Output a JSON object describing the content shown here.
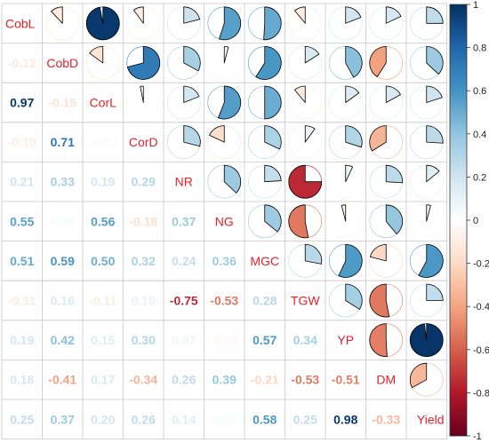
{
  "chart_data": {
    "type": "correlation-matrix",
    "variables": [
      "CobL",
      "CobD",
      "CorL",
      "CorD",
      "NR",
      "NG",
      "MGC",
      "TGW",
      "YP",
      "DM",
      "Yield"
    ],
    "correlations": [
      [
        1,
        -0.12,
        0.97,
        -0.1,
        0.21,
        0.55,
        0.51,
        -0.11,
        0.19,
        0.18,
        0.25
      ],
      [
        -0.12,
        1,
        -0.15,
        0.71,
        0.33,
        0.04,
        0.59,
        0.16,
        0.42,
        -0.41,
        0.37
      ],
      [
        0.97,
        -0.15,
        1,
        -0.03,
        0.19,
        0.56,
        0.5,
        -0.11,
        0.15,
        0.17,
        0.2
      ],
      [
        -0.1,
        0.71,
        -0.03,
        1,
        0.29,
        -0.18,
        0.32,
        0.1,
        0.3,
        -0.34,
        0.26
      ],
      [
        0.21,
        0.33,
        0.19,
        0.29,
        1,
        0.37,
        0.24,
        -0.75,
        0.07,
        0.26,
        0.14
      ],
      [
        0.55,
        0.04,
        0.56,
        -0.18,
        0.37,
        1,
        0.36,
        -0.53,
        -0.04,
        0.39,
        0.04
      ],
      [
        0.51,
        0.59,
        0.5,
        0.32,
        0.24,
        0.36,
        1,
        0.28,
        0.57,
        -0.21,
        0.58
      ],
      [
        -0.11,
        0.16,
        -0.11,
        0.1,
        -0.75,
        -0.53,
        0.28,
        1,
        0.34,
        -0.53,
        0.25
      ],
      [
        0.19,
        0.42,
        0.15,
        0.3,
        0.07,
        -0.04,
        0.57,
        0.34,
        1,
        -0.51,
        0.98
      ],
      [
        0.18,
        -0.41,
        0.17,
        -0.34,
        0.26,
        0.39,
        -0.21,
        -0.53,
        -0.51,
        1,
        -0.33
      ],
      [
        0.25,
        0.37,
        0.2,
        0.26,
        0.14,
        0.04,
        0.58,
        0.25,
        0.98,
        -0.33,
        1
      ]
    ],
    "lower_triangle": "numbers",
    "upper_triangle": "pie",
    "diagonal": "variable names",
    "color_scale": {
      "min": -1,
      "max": 1,
      "ticks": [
        "1",
        "0.8",
        "0.6",
        "0.4",
        "0.2",
        "0",
        "-0.2",
        "-0.4",
        "-0.6",
        "-0.8",
        "-1"
      ]
    },
    "legend_placement": "right",
    "colors": {
      "negative_strong": "#c81f2d",
      "neutral": "#ffffff",
      "positive_strong": "#053061",
      "label": "#e8202a",
      "grid": "#c8c8c8"
    }
  }
}
